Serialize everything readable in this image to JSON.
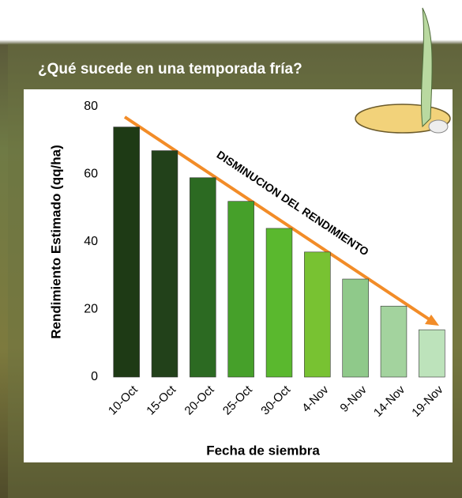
{
  "chart_data": {
    "type": "bar",
    "title": "¿Qué sucede en una temporada fría?",
    "y_label": "Rendimiento  Estimado (qq/ha)",
    "x_label": "Fecha de siembra",
    "annotation": "DISMINUCION DEL RENDIMIENTO",
    "categories": [
      "10-Oct",
      "15-Oct",
      "20-Oct",
      "25-Oct",
      "30-Oct",
      "4-Nov",
      "9-Nov",
      "14-Nov",
      "19-Nov"
    ],
    "values": [
      74,
      67,
      59,
      52,
      44,
      37,
      29,
      21,
      14
    ],
    "colors": [
      "#1e3a15",
      "#22411a",
      "#2c6a22",
      "#46a02a",
      "#5ab82e",
      "#78c232",
      "#8fc98a",
      "#a3d39e",
      "#bde3bb"
    ],
    "ylim": [
      0,
      80
    ],
    "yticks": [
      0,
      20,
      40,
      60,
      80
    ],
    "grid": false
  }
}
